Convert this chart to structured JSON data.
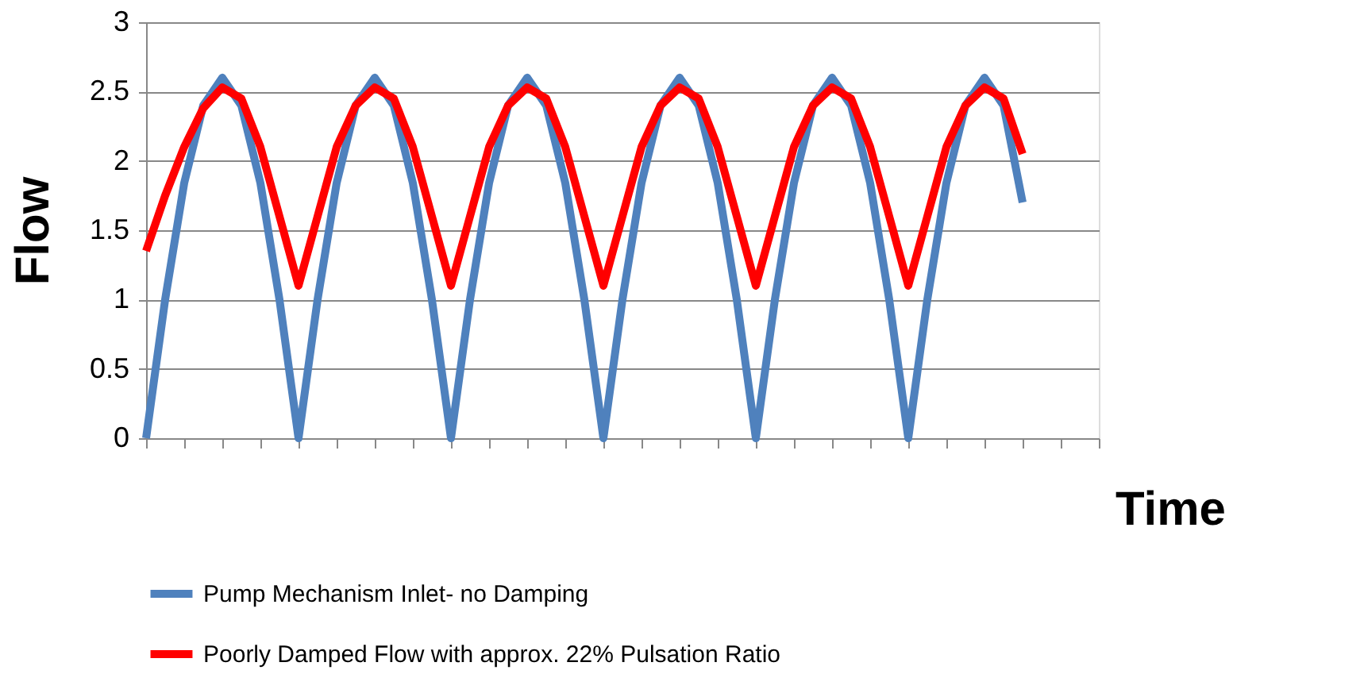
{
  "chart_data": {
    "type": "line",
    "xlabel": "Time",
    "ylabel": "Flow",
    "categories": [
      null,
      null,
      null,
      null,
      null,
      null,
      null,
      null,
      null,
      null,
      null,
      null,
      null,
      null,
      null,
      null,
      null,
      null,
      null,
      null,
      null,
      null,
      null,
      null,
      null,
      null,
      null,
      null,
      null,
      null,
      null,
      null,
      null,
      null,
      null,
      null,
      null,
      null,
      null,
      null,
      null,
      null,
      null,
      null,
      null,
      null,
      null,
      null,
      null,
      null,
      null
    ],
    "series": [
      {
        "name": "Pump Mechanism Inlet- no Damping",
        "color": "#4f81bd",
        "values": [
          0,
          1.0,
          1.84,
          2.4,
          2.6,
          2.4,
          1.84,
          1.0,
          0,
          1.0,
          1.84,
          2.4,
          2.6,
          2.4,
          1.84,
          1.0,
          0,
          1.0,
          1.84,
          2.4,
          2.6,
          2.4,
          1.84,
          1.0,
          0,
          1.0,
          1.84,
          2.4,
          2.6,
          2.4,
          1.84,
          1.0,
          0,
          1.0,
          1.84,
          2.4,
          2.6,
          2.4,
          1.84,
          1.0,
          0,
          1.0,
          1.84,
          2.4,
          2.6,
          2.4,
          1.7,
          null,
          null,
          null,
          null
        ]
      },
      {
        "name": "Poorly Damped Flow with approx. 22% Pulsation Ratio",
        "color": "#ff0000",
        "values": [
          1.35,
          1.75,
          2.1,
          2.38,
          2.53,
          2.45,
          2.1,
          1.6,
          1.1,
          1.6,
          2.1,
          2.4,
          2.53,
          2.45,
          2.1,
          1.6,
          1.1,
          1.6,
          2.1,
          2.4,
          2.53,
          2.45,
          2.1,
          1.6,
          1.1,
          1.6,
          2.1,
          2.4,
          2.53,
          2.45,
          2.1,
          1.6,
          1.1,
          1.6,
          2.1,
          2.4,
          2.53,
          2.45,
          2.1,
          1.6,
          1.1,
          1.6,
          2.1,
          2.4,
          2.53,
          2.45,
          2.05,
          null,
          null,
          null,
          null
        ]
      }
    ],
    "ylim": [
      0,
      3
    ],
    "yticks": [
      0,
      0.5,
      1,
      1.5,
      2,
      2.5,
      3
    ],
    "grid": "y",
    "legend": "bottom",
    "marker": "none",
    "line_style": "solid",
    "tick_labels": "y"
  }
}
